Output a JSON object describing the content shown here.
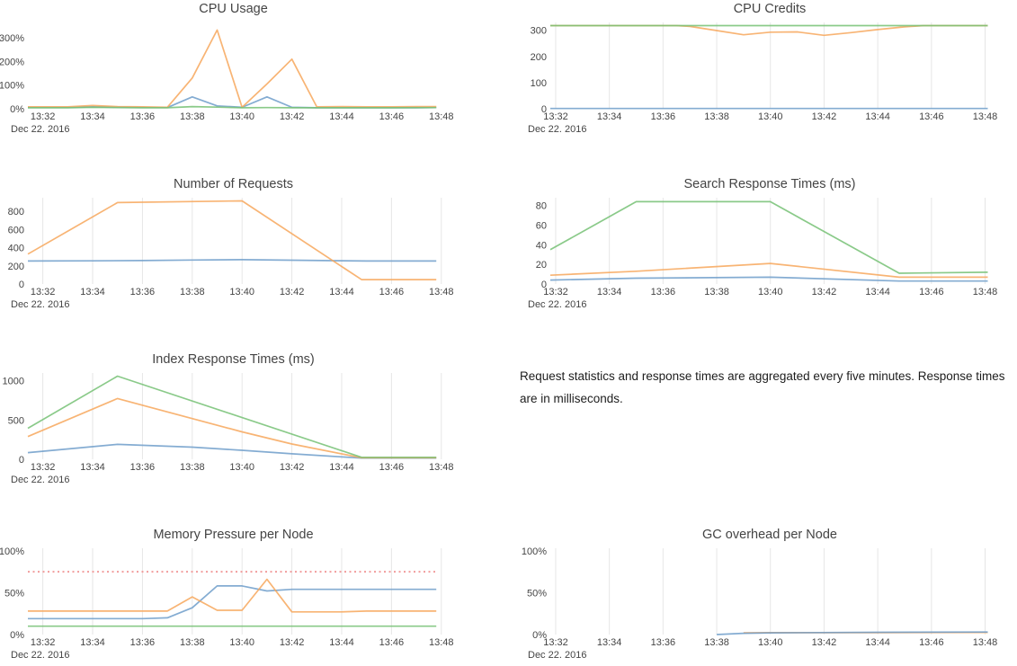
{
  "note": {
    "text": "Request statistics and response times are aggregated every five minutes. Response times are in milliseconds."
  },
  "x_axis": {
    "tick_minutes": [
      32,
      34,
      36,
      38,
      40,
      42,
      44,
      46,
      48
    ],
    "tick_labels": [
      "13:32",
      "13:34",
      "13:36",
      "13:38",
      "13:40",
      "13:42",
      "13:44",
      "13:46",
      "13:48"
    ],
    "date_label": "Dec 22. 2016"
  },
  "colors": {
    "blue": "#6e9dca",
    "orange": "#f7a75c",
    "green": "#76c174",
    "threshold_red": "#ef8b8b",
    "gridline": "#e6e6e6",
    "text": "#444444"
  },
  "chart_data": [
    {
      "type": "line",
      "title": "CPU Usage",
      "xlim": [
        31.4,
        47.9
      ],
      "ylim": [
        0,
        365
      ],
      "y_ticks": [
        {
          "v": 0,
          "label": "0%"
        },
        {
          "v": 100,
          "label": "100%"
        },
        {
          "v": 200,
          "label": "200%"
        },
        {
          "v": 300,
          "label": "300%"
        }
      ],
      "gridlines": false,
      "series": [
        {
          "name": "blue",
          "color": "#6e9dca",
          "points": [
            [
              31.4,
              5
            ],
            [
              33,
              5
            ],
            [
              34,
              8
            ],
            [
              35,
              6
            ],
            [
              36,
              5
            ],
            [
              37,
              5
            ],
            [
              38,
              50
            ],
            [
              39,
              12
            ],
            [
              40,
              6
            ],
            [
              41,
              50
            ],
            [
              42,
              6
            ],
            [
              43,
              4
            ],
            [
              44,
              4
            ],
            [
              45,
              4
            ],
            [
              46,
              4
            ],
            [
              47,
              4
            ],
            [
              47.8,
              5
            ]
          ]
        },
        {
          "name": "orange",
          "color": "#f7a75c",
          "points": [
            [
              31.4,
              8
            ],
            [
              33,
              8
            ],
            [
              34,
              14
            ],
            [
              35,
              9
            ],
            [
              36,
              8
            ],
            [
              37,
              6
            ],
            [
              38,
              130
            ],
            [
              39,
              333
            ],
            [
              40,
              6
            ],
            [
              41,
              105
            ],
            [
              42,
              210
            ],
            [
              43,
              8
            ],
            [
              44,
              9
            ],
            [
              45,
              8
            ],
            [
              46,
              8
            ],
            [
              47,
              9
            ],
            [
              47.8,
              9
            ]
          ]
        },
        {
          "name": "green",
          "color": "#76c174",
          "points": [
            [
              31.4,
              4
            ],
            [
              33,
              4
            ],
            [
              34,
              6
            ],
            [
              36,
              4
            ],
            [
              37,
              4
            ],
            [
              38,
              9
            ],
            [
              39,
              7
            ],
            [
              40,
              4
            ],
            [
              41,
              5
            ],
            [
              42,
              4
            ],
            [
              44,
              4
            ],
            [
              46,
              4
            ],
            [
              47.8,
              5
            ]
          ]
        }
      ]
    },
    {
      "type": "line",
      "title": "CPU Credits",
      "xlim": [
        31.8,
        48.15
      ],
      "ylim": [
        0,
        330
      ],
      "y_ticks": [
        {
          "v": 0,
          "label": "0"
        },
        {
          "v": 100,
          "label": "100"
        },
        {
          "v": 200,
          "label": "200"
        },
        {
          "v": 300,
          "label": "300"
        }
      ],
      "gridlines": true,
      "series": [
        {
          "name": "blue",
          "color": "#6e9dca",
          "points": [
            [
              31.8,
              1
            ],
            [
              48.1,
              1
            ]
          ]
        },
        {
          "name": "orange",
          "color": "#f7a75c",
          "points": [
            [
              31.8,
              318
            ],
            [
              36.5,
              318
            ],
            [
              37,
              315
            ],
            [
              38,
              299
            ],
            [
              39,
              283
            ],
            [
              40,
              293
            ],
            [
              41,
              294
            ],
            [
              42,
              281
            ],
            [
              43,
              291
            ],
            [
              44,
              303
            ],
            [
              45,
              313
            ],
            [
              45.7,
              318
            ],
            [
              48.1,
              318
            ]
          ]
        },
        {
          "name": "green",
          "color": "#76c174",
          "points": [
            [
              31.8,
              318
            ],
            [
              48.1,
              318
            ]
          ]
        }
      ]
    },
    {
      "type": "line",
      "title": "Number of Requests",
      "xlim": [
        31.4,
        47.9
      ],
      "ylim": [
        0,
        950
      ],
      "y_ticks": [
        {
          "v": 0,
          "label": "0"
        },
        {
          "v": 200,
          "label": "200"
        },
        {
          "v": 400,
          "label": "400"
        },
        {
          "v": 600,
          "label": "600"
        },
        {
          "v": 800,
          "label": "800"
        }
      ],
      "gridlines": true,
      "series": [
        {
          "name": "blue",
          "color": "#6e9dca",
          "points": [
            [
              31.4,
              253
            ],
            [
              34,
              255
            ],
            [
              36,
              258
            ],
            [
              38,
              264
            ],
            [
              40,
              268
            ],
            [
              42,
              262
            ],
            [
              44,
              256
            ],
            [
              45,
              253
            ],
            [
              47.8,
              253
            ]
          ]
        },
        {
          "name": "orange",
          "color": "#f7a75c",
          "points": [
            [
              31.4,
              330
            ],
            [
              35,
              897
            ],
            [
              40,
              915
            ],
            [
              44.8,
              48
            ],
            [
              47.8,
              48
            ]
          ]
        }
      ]
    },
    {
      "type": "line",
      "title": "Search Response Times (ms)",
      "xlim": [
        31.8,
        48.15
      ],
      "ylim": [
        0,
        88
      ],
      "y_ticks": [
        {
          "v": 0,
          "label": "0"
        },
        {
          "v": 20,
          "label": "20"
        },
        {
          "v": 40,
          "label": "40"
        },
        {
          "v": 60,
          "label": "60"
        },
        {
          "v": 80,
          "label": "80"
        }
      ],
      "gridlines": true,
      "series": [
        {
          "name": "blue",
          "color": "#6e9dca",
          "points": [
            [
              31.8,
              4
            ],
            [
              35,
              6
            ],
            [
              40,
              7
            ],
            [
              44.8,
              3
            ],
            [
              48.1,
              3
            ]
          ]
        },
        {
          "name": "orange",
          "color": "#f7a75c",
          "points": [
            [
              31.8,
              9
            ],
            [
              35,
              13
            ],
            [
              40,
              21
            ],
            [
              44.8,
              7
            ],
            [
              48.1,
              7
            ]
          ]
        },
        {
          "name": "green",
          "color": "#76c174",
          "points": [
            [
              31.8,
              35
            ],
            [
              35,
              84
            ],
            [
              40,
              84
            ],
            [
              44.8,
              11
            ],
            [
              48.1,
              12
            ]
          ]
        }
      ]
    },
    {
      "type": "line",
      "title": "Index Response Times (ms)",
      "xlim": [
        31.4,
        47.9
      ],
      "ylim": [
        0,
        1100
      ],
      "y_ticks": [
        {
          "v": 0,
          "label": "0"
        },
        {
          "v": 500,
          "label": "500"
        },
        {
          "v": 1000,
          "label": "1000"
        }
      ],
      "gridlines": true,
      "series": [
        {
          "name": "blue",
          "color": "#6e9dca",
          "points": [
            [
              31.4,
              85
            ],
            [
              35,
              190
            ],
            [
              38,
              155
            ],
            [
              40,
              115
            ],
            [
              42,
              70
            ],
            [
              44.8,
              15
            ],
            [
              47.8,
              15
            ]
          ]
        },
        {
          "name": "orange",
          "color": "#f7a75c",
          "points": [
            [
              31.4,
              290
            ],
            [
              35,
              775
            ],
            [
              40,
              350
            ],
            [
              42,
              195
            ],
            [
              44.8,
              20
            ],
            [
              47.8,
              20
            ]
          ]
        },
        {
          "name": "green",
          "color": "#76c174",
          "points": [
            [
              31.4,
              395
            ],
            [
              35,
              1060
            ],
            [
              44.8,
              25
            ],
            [
              47.8,
              25
            ]
          ]
        }
      ]
    },
    {
      "type": "line",
      "title": "Memory Pressure per Node",
      "xlim": [
        31.4,
        47.9
      ],
      "ylim": [
        0,
        103
      ],
      "y_ticks": [
        {
          "v": 0,
          "label": "0%"
        },
        {
          "v": 50,
          "label": "50%"
        },
        {
          "v": 100,
          "label": "100%"
        }
      ],
      "gridlines": true,
      "series": [
        {
          "name": "threshold",
          "color": "#ef8b8b",
          "dash": "2,3.5",
          "width": 2,
          "points": [
            [
              31.4,
              75
            ],
            [
              47.8,
              75
            ]
          ]
        },
        {
          "name": "blue",
          "color": "#6e9dca",
          "points": [
            [
              31.4,
              19
            ],
            [
              36,
              19
            ],
            [
              37,
              20
            ],
            [
              38,
              32
            ],
            [
              39,
              58
            ],
            [
              40,
              58
            ],
            [
              41,
              52
            ],
            [
              42,
              54
            ],
            [
              47.8,
              54
            ]
          ]
        },
        {
          "name": "orange",
          "color": "#f7a75c",
          "points": [
            [
              31.4,
              28
            ],
            [
              37,
              28
            ],
            [
              38,
              45
            ],
            [
              39,
              29
            ],
            [
              40,
              29
            ],
            [
              41,
              66
            ],
            [
              42,
              27
            ],
            [
              44,
              27
            ],
            [
              45,
              28
            ],
            [
              47.8,
              28
            ]
          ]
        },
        {
          "name": "green",
          "color": "#76c174",
          "points": [
            [
              31.4,
              10
            ],
            [
              47.8,
              10
            ]
          ]
        }
      ]
    },
    {
      "type": "line",
      "title": "GC overhead per Node",
      "xlim": [
        31.8,
        48.15
      ],
      "ylim": [
        0,
        103
      ],
      "y_ticks": [
        {
          "v": 0,
          "label": "0%"
        },
        {
          "v": 50,
          "label": "50%"
        },
        {
          "v": 100,
          "label": "100%"
        }
      ],
      "gridlines": true,
      "series": [
        {
          "name": "orange",
          "color": "#f7a75c",
          "points": [
            [
              39,
              2
            ],
            [
              40,
              2.3
            ],
            [
              44,
              2.3
            ],
            [
              48.1,
              2.5
            ]
          ]
        },
        {
          "name": "blue",
          "color": "#6e9dca",
          "points": [
            [
              38,
              0
            ],
            [
              39,
              1.5
            ],
            [
              40,
              2
            ],
            [
              44,
              2.7
            ],
            [
              48.1,
              3
            ]
          ]
        }
      ]
    }
  ]
}
